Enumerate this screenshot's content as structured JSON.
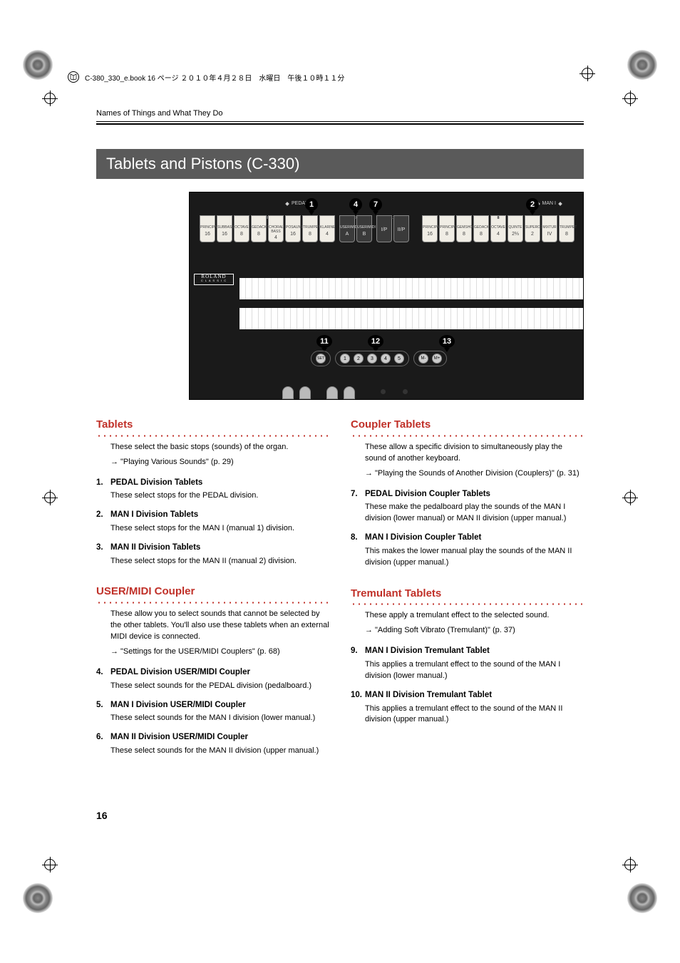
{
  "header": {
    "filename": "C-380_330_e.book  16 ページ  ２０１０年４月２８日　水曜日　午後１０時１１分"
  },
  "breadcrumb": "Names of Things and What They Do",
  "section_title": "Tablets and Pistons (C-330)",
  "page_number": "16",
  "panel": {
    "roland": "ROLAND",
    "classic": "C L A S S I C",
    "pedal_label": "PEDAL",
    "man1_label": "MAN I",
    "pedal_tablets": [
      {
        "n": "1",
        "name": "PRINCIPAL",
        "ft": "16"
      },
      {
        "n": "2",
        "name": "SUBBASS",
        "ft": "16"
      },
      {
        "n": "3",
        "name": "OCTAVE",
        "ft": "8"
      },
      {
        "n": "4",
        "name": "GEDACKT",
        "ft": "8"
      },
      {
        "n": "5",
        "name": "CHORAL BASS",
        "ft": "4"
      },
      {
        "n": "6",
        "name": "POSAUNE",
        "ft": "16"
      },
      {
        "n": "7",
        "name": "TRUMPET",
        "ft": "8"
      },
      {
        "n": "8",
        "name": "KLARINE",
        "ft": "4"
      }
    ],
    "pedal_user": [
      {
        "n": "9",
        "name": "USER/MIDI",
        "ft": "A"
      },
      {
        "n": "10",
        "name": "USER/MIDI",
        "ft": "B"
      }
    ],
    "pedal_couplers": [
      {
        "n": "11",
        "name": "",
        "ft": "I/P"
      },
      {
        "n": "12",
        "name": "",
        "ft": "II/P"
      }
    ],
    "man1_tablets": [
      {
        "n": "1",
        "name": "PRINCIPAL",
        "ft": "16"
      },
      {
        "n": "2",
        "name": "PRINCIPAL",
        "ft": "8"
      },
      {
        "n": "3",
        "name": "GEMSHORN",
        "ft": "8"
      },
      {
        "n": "4",
        "name": "GEDACKT",
        "ft": "8"
      },
      {
        "n": "5",
        "name": "OCTAVE",
        "ft": "4"
      },
      {
        "n": "6",
        "name": "QUINTE",
        "ft": "2⅔"
      },
      {
        "n": "7",
        "name": "SUPEROCT",
        "ft": "2"
      },
      {
        "n": "8",
        "name": "MIXTUR",
        "ft": "IV"
      },
      {
        "n": "9",
        "name": "TRUMPET",
        "ft": "8"
      }
    ],
    "callouts": {
      "c1": "1",
      "c2": "2",
      "c4": "4",
      "c7": "7",
      "c11": "11",
      "c12": "12",
      "c13": "13"
    },
    "pistons": {
      "set": "SET",
      "nums": [
        "1",
        "2",
        "3",
        "4",
        "5"
      ],
      "mem": [
        "M-",
        "M+"
      ]
    }
  },
  "left": {
    "tablets": {
      "title": "Tablets",
      "intro": "These select the basic stops (sounds) of the organ.",
      "ref": "\"Playing Various Sounds\" (p. 29)",
      "items": [
        {
          "n": "1.",
          "t": "PEDAL Division Tablets",
          "b": "These select stops for the PEDAL division."
        },
        {
          "n": "2.",
          "t": "MAN I Division Tablets",
          "b": "These select stops for the MAN I (manual 1) division."
        },
        {
          "n": "3.",
          "t": "MAN II Division Tablets",
          "b": "These select stops for the MAN II (manual 2) division."
        }
      ]
    },
    "usermidi": {
      "title": "USER/MIDI Coupler",
      "intro": "These allow you to select sounds that cannot be selected by the other tablets. You'll also use these tablets when an external MIDI device is connected.",
      "ref": "\"Settings for the USER/MIDI Couplers\" (p. 68)",
      "items": [
        {
          "n": "4.",
          "t": "PEDAL Division USER/MIDI Coupler",
          "b": "These select sounds for the PEDAL division (pedalboard.)"
        },
        {
          "n": "5.",
          "t": "MAN I Division USER/MIDI Coupler",
          "b": "These select sounds for the MAN I division (lower manual.)"
        },
        {
          "n": "6.",
          "t": "MAN II Division USER/MIDI Coupler",
          "b": "These select sounds for the MAN II division (upper manual.)"
        }
      ]
    }
  },
  "right": {
    "coupler": {
      "title": "Coupler Tablets",
      "intro": "These allow a specific division to simultaneously play the sound of another keyboard.",
      "ref": "\"Playing the Sounds of Another Division (Couplers)\" (p. 31)",
      "items": [
        {
          "n": "7.",
          "t": "PEDAL Division Coupler Tablets",
          "b": "These make the pedalboard play the sounds of the MAN I division (lower manual) or MAN II division (upper manual.)"
        },
        {
          "n": "8.",
          "t": "MAN I Division Coupler Tablet",
          "b": "This makes the lower manual play the sounds of the MAN II division (upper manual.)"
        }
      ]
    },
    "tremulant": {
      "title": "Tremulant Tablets",
      "intro": "These apply a tremulant effect to the selected sound.",
      "ref": "\"Adding Soft Vibrato (Tremulant)\" (p. 37)",
      "items": [
        {
          "n": "9.",
          "t": "MAN I Division Tremulant Tablet",
          "b": "This applies a tremulant effect to the sound of the MAN I division (lower manual.)"
        },
        {
          "n": "10.",
          "t": "MAN II Division Tremulant Tablet",
          "b": "This applies a tremulant effect to the sound of the MAN II division (upper manual.)"
        }
      ]
    }
  }
}
